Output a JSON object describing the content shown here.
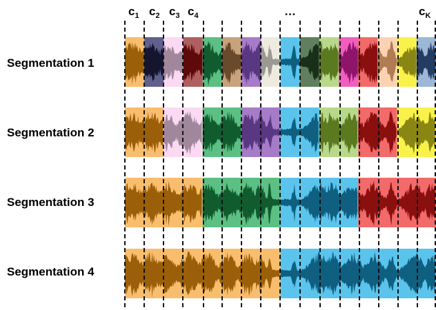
{
  "header": {
    "boundary_labels": [
      {
        "base": "c",
        "sub": "1"
      },
      {
        "base": "c",
        "sub": "2"
      },
      {
        "base": "c",
        "sub": "3"
      },
      {
        "base": "c",
        "sub": "4"
      },
      {
        "base": "…",
        "sub": ""
      },
      {
        "base": "c",
        "sub": "K"
      }
    ]
  },
  "rows": [
    {
      "label": "Segmentation 1",
      "segments": [
        {
          "from": 0,
          "to": 1,
          "color": "#f9bd6e",
          "wave": "#9a5f08"
        },
        {
          "from": 1,
          "to": 2,
          "color": "#60608c",
          "wave": "#15152f"
        },
        {
          "from": 2,
          "to": 3,
          "color": "#fbd9f3",
          "wave": "#a0879b"
        },
        {
          "from": 3,
          "to": 4,
          "color": "#b05f5f",
          "wave": "#5f0a0a"
        },
        {
          "from": 4,
          "to": 5,
          "color": "#5cbf83",
          "wave": "#115c2e"
        },
        {
          "from": 5,
          "to": 6,
          "color": "#c7a27c",
          "wave": "#6a4a2c"
        },
        {
          "from": 6,
          "to": 7,
          "color": "#a67cc8",
          "wave": "#5a3782"
        },
        {
          "from": 7,
          "to": 8,
          "color": "#eeeae0",
          "wave": "#9a9a92"
        },
        {
          "from": 8,
          "to": 9,
          "color": "#5bc4ec",
          "wave": "#0f5f80"
        },
        {
          "from": 9,
          "to": 10,
          "color": "#5f7f5f",
          "wave": "#1a2f1a"
        },
        {
          "from": 10,
          "to": 11,
          "color": "#b8d98a",
          "wave": "#5b7a20"
        },
        {
          "from": 11,
          "to": 12,
          "color": "#f25ec0",
          "wave": "#8e1569"
        },
        {
          "from": 12,
          "to": 13,
          "color": "#f26a6a",
          "wave": "#8a0f0f"
        },
        {
          "from": 13,
          "to": 14,
          "color": "#fbd3b3",
          "wave": "#b07c52"
        },
        {
          "from": 14,
          "to": 15,
          "color": "#f8f24a",
          "wave": "#8a8614"
        },
        {
          "from": 15,
          "to": 16,
          "color": "#9db7d6",
          "wave": "#243b62"
        }
      ]
    },
    {
      "label": "Segmentation 2",
      "segments": [
        {
          "from": 0,
          "to": 2,
          "color": "#f9bd6e",
          "wave": "#9a5f08"
        },
        {
          "from": 2,
          "to": 4,
          "color": "#fbd9f3",
          "wave": "#a0879b"
        },
        {
          "from": 4,
          "to": 6,
          "color": "#5cbf83",
          "wave": "#115c2e"
        },
        {
          "from": 6,
          "to": 8,
          "color": "#a67cc8",
          "wave": "#5a3782"
        },
        {
          "from": 8,
          "to": 10,
          "color": "#5bc4ec",
          "wave": "#0f5f80"
        },
        {
          "from": 10,
          "to": 12,
          "color": "#b8d98a",
          "wave": "#5b7a20"
        },
        {
          "from": 12,
          "to": 14,
          "color": "#f26a6a",
          "wave": "#8a0f0f"
        },
        {
          "from": 14,
          "to": 16,
          "color": "#f8f24a",
          "wave": "#8a8614"
        }
      ]
    },
    {
      "label": "Segmentation 3",
      "segments": [
        {
          "from": 0,
          "to": 4,
          "color": "#f9bd6e",
          "wave": "#9a5f08"
        },
        {
          "from": 4,
          "to": 8,
          "color": "#5cbf83",
          "wave": "#115c2e"
        },
        {
          "from": 8,
          "to": 12,
          "color": "#5bc4ec",
          "wave": "#0f5f80"
        },
        {
          "from": 12,
          "to": 16,
          "color": "#f26a6a",
          "wave": "#8a0f0f"
        }
      ]
    },
    {
      "label": "Segmentation 4",
      "segments": [
        {
          "from": 0,
          "to": 8,
          "color": "#f9bd6e",
          "wave": "#9a5f08"
        },
        {
          "from": 8,
          "to": 16,
          "color": "#5bc4ec",
          "wave": "#0f5f80"
        }
      ]
    }
  ]
}
